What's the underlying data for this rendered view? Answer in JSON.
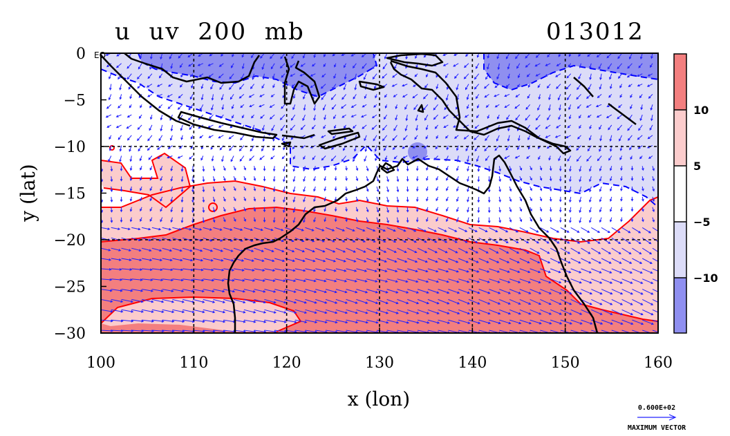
{
  "header": {
    "title": "u  uv  200  mb",
    "date_code": "013012"
  },
  "map": {
    "equator_label": "EQ",
    "xlabel": "x (lon)",
    "ylabel": "y (lat)",
    "lon_ticks": [
      "100",
      "110",
      "120",
      "130",
      "140",
      "150",
      "160"
    ],
    "lat_ticks": [
      "0",
      "−5",
      "−10",
      "−15",
      "−20",
      "−25",
      "−30"
    ],
    "lon_range": [
      100,
      160
    ],
    "lat_range": [
      -30,
      0
    ],
    "grid_lines_lon": [
      110,
      120,
      130,
      140,
      150
    ],
    "grid_lines_lat": [
      -10,
      -20
    ]
  },
  "colorbar": {
    "tick_labels": [
      "10",
      "5",
      "−5",
      "−10"
    ],
    "colors": [
      "#f37f7f",
      "#fbcccc",
      "#ffffff",
      "#dcdcf8",
      "#8f8ff0"
    ]
  },
  "colors": {
    "strong_westerly": "#f37f7f",
    "weak_westerly": "#fbcccc",
    "weak_easterly": "#dcdcf8",
    "strong_easterly": "#8f8ff0",
    "contour_positive": "#ff0000",
    "contour_negative": "#0000ff",
    "vectors": "#2020ff",
    "coastline": "#000000"
  },
  "legend": {
    "magnitude": "0.600E+02",
    "caption": "MAXIMUM VECTOR"
  }
}
